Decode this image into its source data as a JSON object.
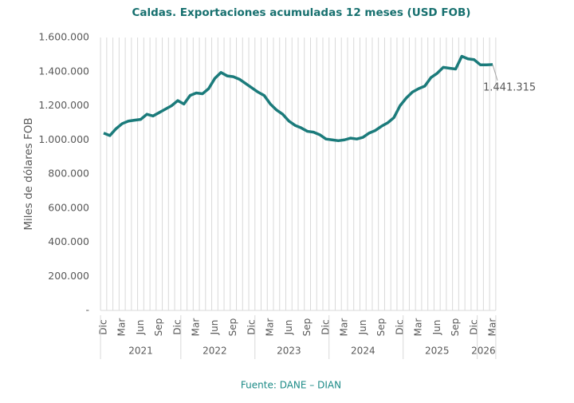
{
  "chart_data": {
    "type": "line",
    "title": "Caldas. Exportaciones acumuladas 12 meses (USD FOB)",
    "y_label": "Miles de dólares FOB",
    "source": "Fuente: DANE – DIAN",
    "categories": [
      "Dic",
      null,
      null,
      "Mar",
      null,
      null,
      "Jun",
      null,
      null,
      "Sep",
      null,
      null,
      "Dic",
      null,
      null,
      "Mar",
      null,
      null,
      "Jun",
      null,
      null,
      "Sep",
      null,
      null,
      "Dic",
      null,
      null,
      "Mar",
      null,
      null,
      "Jun",
      null,
      null,
      "Sep",
      null,
      null,
      "Dic",
      null,
      null,
      "Mar",
      null,
      null,
      "Jun",
      null,
      null,
      "Sep",
      null,
      null,
      "Dic",
      null,
      null,
      "Mar",
      null,
      null,
      "Jun",
      null,
      null,
      "Sep",
      null,
      null,
      "Dic",
      null,
      null,
      "Mar"
    ],
    "years": [
      "2021",
      "2022",
      "2023",
      "2024",
      "2025",
      "2026"
    ],
    "series": [
      {
        "name": "Exportaciones",
        "color": "#1b7b7b",
        "values": [
          1040000,
          1025000,
          1065000,
          1095000,
          1110000,
          1115000,
          1120000,
          1150000,
          1140000,
          1160000,
          1180000,
          1200000,
          1230000,
          1210000,
          1260000,
          1275000,
          1270000,
          1300000,
          1360000,
          1395000,
          1375000,
          1370000,
          1355000,
          1330000,
          1305000,
          1280000,
          1260000,
          1210000,
          1175000,
          1150000,
          1110000,
          1085000,
          1070000,
          1050000,
          1045000,
          1030000,
          1005000,
          1000000,
          995000,
          1000000,
          1010000,
          1005000,
          1015000,
          1040000,
          1055000,
          1080000,
          1100000,
          1130000,
          1200000,
          1245000,
          1280000,
          1300000,
          1315000,
          1365000,
          1390000,
          1425000,
          1420000,
          1415000,
          1490000,
          1475000,
          1470000,
          1440000,
          1440000,
          1441315
        ],
        "value_labels": [
          null,
          null,
          null,
          null,
          null,
          null,
          null,
          null,
          null,
          null,
          null,
          null,
          null,
          null,
          null,
          null,
          null,
          null,
          null,
          null,
          null,
          null,
          null,
          null,
          null,
          null,
          null,
          null,
          null,
          null,
          null,
          null,
          null,
          null,
          null,
          null,
          null,
          null,
          null,
          null,
          null,
          null,
          null,
          null,
          null,
          null,
          null,
          null,
          null,
          null,
          null,
          null,
          null,
          null,
          null,
          null,
          null,
          null,
          null,
          null,
          null,
          null,
          null,
          "1.441.315"
        ]
      }
    ],
    "ylim": [
      0,
      1600000
    ],
    "yticks": [
      {
        "value": 0,
        "label": "-"
      },
      {
        "value": 200000,
        "label": "200.000"
      },
      {
        "value": 400000,
        "label": "400.000"
      },
      {
        "value": 600000,
        "label": "600.000"
      },
      {
        "value": 800000,
        "label": "800.000"
      },
      {
        "value": 1000000,
        "label": "1.000.000"
      },
      {
        "value": 1200000,
        "label": "1.200.000"
      },
      {
        "value": 1400000,
        "label": "1.400.000"
      },
      {
        "value": 1600000,
        "label": "1.600.000"
      }
    ],
    "vertical_grid": true
  }
}
